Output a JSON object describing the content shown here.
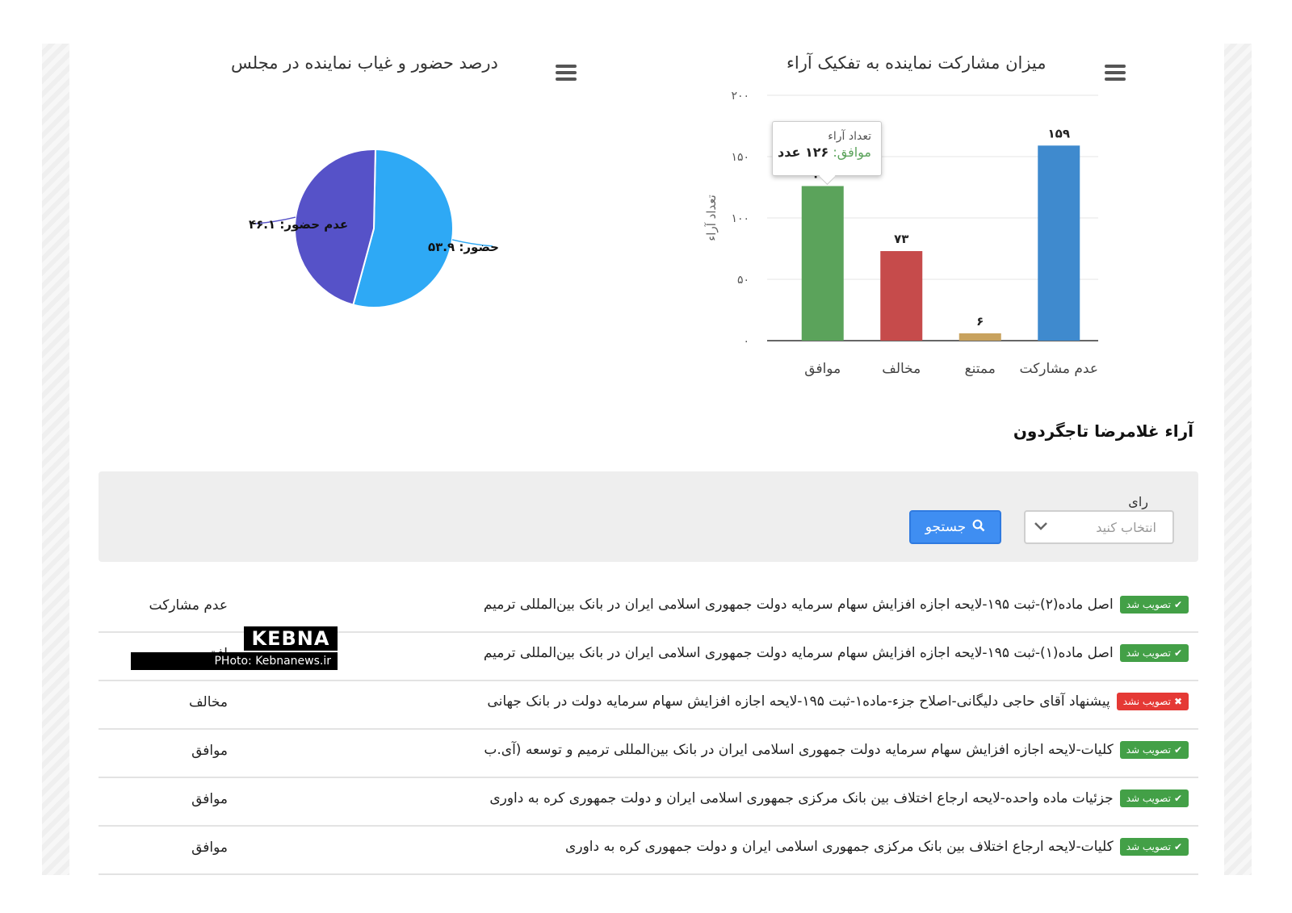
{
  "charts": {
    "pie": {
      "title": "درصد حضور و غیاب نماینده در مجلس",
      "menu_icon": "hamburger-menu-icon"
    },
    "bar": {
      "title": "میزان مشارکت نماینده به تفکیک آراء",
      "menu_icon": "hamburger-menu-icon",
      "tooltip": {
        "header": "تعداد آراء",
        "series": "موافق:",
        "value": "۱۲۶ عدد"
      }
    }
  },
  "chart_data": [
    {
      "type": "bar",
      "title": "میزان مشارکت نماینده به تفکیک آراء",
      "ylabel": "تعداد آراء",
      "ylim": [
        0,
        200
      ],
      "yticks": [
        "۰",
        "۵۰",
        "۱۰۰",
        "۱۵۰",
        "۲۰۰"
      ],
      "categories": [
        "موافق",
        "مخالف",
        "ممتنع",
        "عدم مشارکت"
      ],
      "values": [
        126,
        73,
        6,
        159
      ],
      "value_labels": [
        "۱۲۶",
        "۷۳",
        "۶",
        "۱۵۹"
      ],
      "colors": [
        "#5ba35b",
        "#c64b4b",
        "#c8a25e",
        "#3f8ace"
      ],
      "grid": true
    },
    {
      "type": "pie",
      "title": "درصد حضور و غیاب نماینده در مجلس",
      "slices": [
        {
          "label": "حضور: ۵۳.۹",
          "value": 53.9,
          "color": "#2ea9f5"
        },
        {
          "label": "عدم حضور: ۴۶.۱",
          "value": 46.1,
          "color": "#5652c8"
        }
      ]
    }
  ],
  "section_title": "آراء غلامرضا تاجگردون",
  "filter": {
    "label": "رای",
    "select_placeholder": "انتخاب کنید",
    "search_label": "جستجو",
    "search_icon": "search-icon",
    "chevron_icon": "chevron-down-icon"
  },
  "rows": [
    {
      "badge": "تصویب شد",
      "badge_type": "ok",
      "title": "اصل ماده(۲)-ثبت ۱۹۵-لایحه اجازه افزایش سهام سرمایه دولت جمهوری اسلامی ایران در بانک بین‌المللی ترمیم",
      "vote": "عدم مشارکت"
    },
    {
      "badge": "تصویب شد",
      "badge_type": "ok",
      "title": "اصل ماده(۱)-ثبت ۱۹۵-لایحه اجازه افزایش سهام سرمایه دولت جمهوری اسلامی ایران در بانک بین‌المللی ترمیم",
      "vote": "افق"
    },
    {
      "badge": "تصویب نشد",
      "badge_type": "no",
      "title": "پیشنهاد آقای حاجی دلیگانی-اصلاح جزء-ماده۱-ثبت ۱۹۵-لایحه اجازه افزایش سهام سرمایه دولت در بانک جهانی",
      "vote": "مخالف"
    },
    {
      "badge": "تصویب شد",
      "badge_type": "ok",
      "title": "کلیات-لایحه اجازه افزایش سهام سرمایه دولت جمهوری اسلامی ایران در بانک بین‌المللی ترمیم و توسعه (آی.ب",
      "vote": "موافق"
    },
    {
      "badge": "تصویب شد",
      "badge_type": "ok",
      "title": "جزئیات ماده واحده-لایحه ارجاع اختلاف بین بانک مرکزی جمهوری اسلامی ایران و دولت جمهوری کره به داوری",
      "vote": "موافق"
    },
    {
      "badge": "تصویب شد",
      "badge_type": "ok",
      "title": "کلیات-لایحه ارجاع اختلاف بین بانک مرکزی جمهوری اسلامی ایران و دولت جمهوری کره به داوری",
      "vote": "موافق"
    }
  ],
  "watermark": {
    "brand": "KEBNA",
    "photo_line": "PHoto: Kebnanews.ir"
  }
}
